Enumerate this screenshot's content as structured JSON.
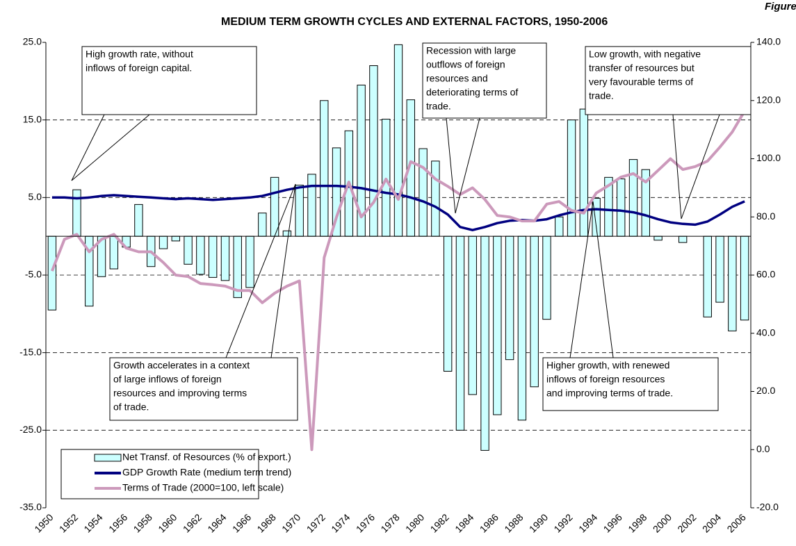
{
  "chart_data": {
    "type": "bar-line",
    "figure_label": "Figure",
    "title": "MEDIUM TERM GROWTH CYCLES AND EXTERNAL FACTORS, 1950-2006",
    "categories": [
      "1950",
      null,
      "1952",
      null,
      "1954",
      null,
      "1956",
      null,
      "1958",
      null,
      "1960",
      null,
      "1962",
      null,
      "1964",
      null,
      "1966",
      null,
      "1968",
      null,
      "1970",
      null,
      "1972",
      null,
      "1974",
      null,
      "1976",
      null,
      "1978",
      null,
      "1980",
      null,
      "1982",
      null,
      "1984",
      null,
      "1986",
      null,
      "1988",
      null,
      "1990",
      null,
      "1992",
      null,
      "1994",
      null,
      "1996",
      null,
      "1998",
      null,
      "2000",
      null,
      "2002",
      null,
      "2004",
      null,
      "2006"
    ],
    "ylim": [
      -35,
      25
    ],
    "yticks": [
      {
        "value": -35,
        "label": "-35.0"
      },
      {
        "value": -25,
        "label": "-25.0"
      },
      {
        "value": -15,
        "label": "-15.0"
      },
      {
        "value": -5,
        "label": "-5.0"
      },
      {
        "value": 5,
        "label": "5.0"
      },
      {
        "value": 15,
        "label": "15.0"
      },
      {
        "value": 25,
        "label": "25.0"
      }
    ],
    "y2lim": [
      -20,
      140
    ],
    "y2ticks": [
      {
        "value": -20,
        "label": "-20.0"
      },
      {
        "value": 0,
        "label": "0.0"
      },
      {
        "value": 20,
        "label": "20.0"
      },
      {
        "value": 40,
        "label": "40.0"
      },
      {
        "value": 60,
        "label": "60.0"
      },
      {
        "value": 80,
        "label": "80.0"
      },
      {
        "value": 100,
        "label": "100.0"
      },
      {
        "value": 120,
        "label": "120.0"
      },
      {
        "value": 140,
        "label": "140.0"
      }
    ],
    "grid": true,
    "legend": "lower left",
    "series": [
      {
        "name": "Net Transf. of Resources (% of export.)",
        "type": "bar",
        "color": "#ccffff",
        "values": [
          -9.5,
          null,
          6.0,
          -9.0,
          -5.2,
          -4.2,
          -1.4,
          4.1,
          -3.9,
          -1.6,
          -0.6,
          -3.6,
          -4.9,
          -5.3,
          -5.7,
          -7.9,
          -6.6,
          3.0,
          7.6,
          0.7,
          6.6,
          8.0,
          17.5,
          11.4,
          13.6,
          19.5,
          22.0,
          15.1,
          24.7,
          17.6,
          11.3,
          9.7,
          -17.4,
          -25.0,
          -20.4,
          -27.6,
          -23.0,
          -15.9,
          -23.7,
          -19.4,
          -10.7,
          2.5,
          15.0,
          16.4,
          4.9,
          7.6,
          7.4,
          9.9,
          8.6,
          -0.5,
          null,
          -0.8,
          null,
          -10.4,
          -8.5,
          -12.2,
          -10.8
        ]
      },
      {
        "name": "GDP Growth Rate (medium term trend)",
        "type": "line",
        "color": "#000080",
        "values": [
          5.0,
          5.0,
          4.9,
          5.0,
          5.2,
          5.3,
          5.2,
          5.1,
          5.0,
          4.9,
          4.8,
          4.9,
          4.8,
          4.7,
          4.8,
          4.9,
          5.0,
          5.2,
          5.6,
          6.0,
          6.3,
          6.5,
          6.5,
          6.5,
          6.4,
          6.2,
          5.9,
          5.6,
          5.4,
          5.0,
          4.5,
          3.8,
          2.8,
          1.2,
          0.8,
          1.2,
          1.7,
          2.0,
          2.1,
          2.0,
          2.2,
          2.7,
          3.1,
          3.4,
          3.5,
          3.4,
          3.3,
          3.1,
          2.7,
          2.2,
          1.8,
          1.6,
          1.5,
          1.9,
          2.8,
          3.8,
          4.5
        ]
      },
      {
        "name": "Terms of Trade (2000=100, left scale)",
        "type": "line",
        "axis": "y2",
        "color": "#cc99bb",
        "values": [
          61.4,
          72.3,
          74,
          68,
          72.3,
          74,
          69.3,
          68,
          68,
          64.3,
          60,
          59.5,
          57.1,
          56.7,
          56.2,
          54.7,
          54.7,
          50.5,
          53.8,
          56.2,
          58,
          0,
          66,
          80,
          92,
          80,
          85,
          93,
          86,
          99,
          97,
          93,
          90.5,
          87.7,
          90,
          86,
          80.5,
          80,
          78.6,
          78.6,
          84.4,
          85.3,
          82.2,
          81.3,
          88.2,
          90.8,
          93.7,
          94.9,
          92,
          96,
          100,
          96.3,
          97.3,
          99.2,
          104,
          109.2,
          116.4
        ]
      }
    ],
    "annotations": [
      {
        "lines": [
          "High growth rate, without",
          "inflows of foreign capital."
        ]
      },
      {
        "lines": [
          "Recession with large",
          "outflows of foreign",
          "resources and",
          "deteriorating terms of",
          "trade."
        ]
      },
      {
        "lines": [
          "Low growth, with negative",
          "transfer of resources but",
          "very favourable terms of",
          "trade."
        ]
      },
      {
        "lines": [
          "Growth accelerates in a context",
          "of large inflows of foreign",
          "resources and improving terms",
          "of trade."
        ]
      },
      {
        "lines": [
          "Higher growth, with renewed",
          "inflows of foreign resources",
          "and improving terms of trade."
        ]
      }
    ]
  }
}
